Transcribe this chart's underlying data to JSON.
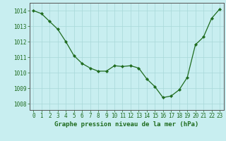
{
  "x": [
    0,
    1,
    2,
    3,
    4,
    5,
    6,
    7,
    8,
    9,
    10,
    11,
    12,
    13,
    14,
    15,
    16,
    17,
    18,
    19,
    20,
    21,
    22,
    23
  ],
  "y": [
    1014.0,
    1013.8,
    1013.3,
    1012.8,
    1012.0,
    1011.1,
    1010.6,
    1010.3,
    1010.1,
    1010.1,
    1010.45,
    1010.4,
    1010.45,
    1010.3,
    1009.6,
    1009.1,
    1008.4,
    1008.5,
    1008.9,
    1009.7,
    1011.8,
    1012.3,
    1013.5,
    1014.1
  ],
  "line_color": "#1e6b1e",
  "marker": "D",
  "marker_size": 2.2,
  "bg_color": "#c8eef0",
  "grid_color": "#a8d8d8",
  "ylabel_ticks": [
    1008,
    1009,
    1010,
    1011,
    1012,
    1013,
    1014
  ],
  "xlabel": "Graphe pression niveau de la mer (hPa)",
  "ylim": [
    1007.6,
    1014.5
  ],
  "xlim": [
    -0.5,
    23.5
  ],
  "tick_color": "#1e6b1e",
  "label_color": "#1e6b1e",
  "xlabel_fontsize": 6.5,
  "tick_fontsize": 5.5
}
